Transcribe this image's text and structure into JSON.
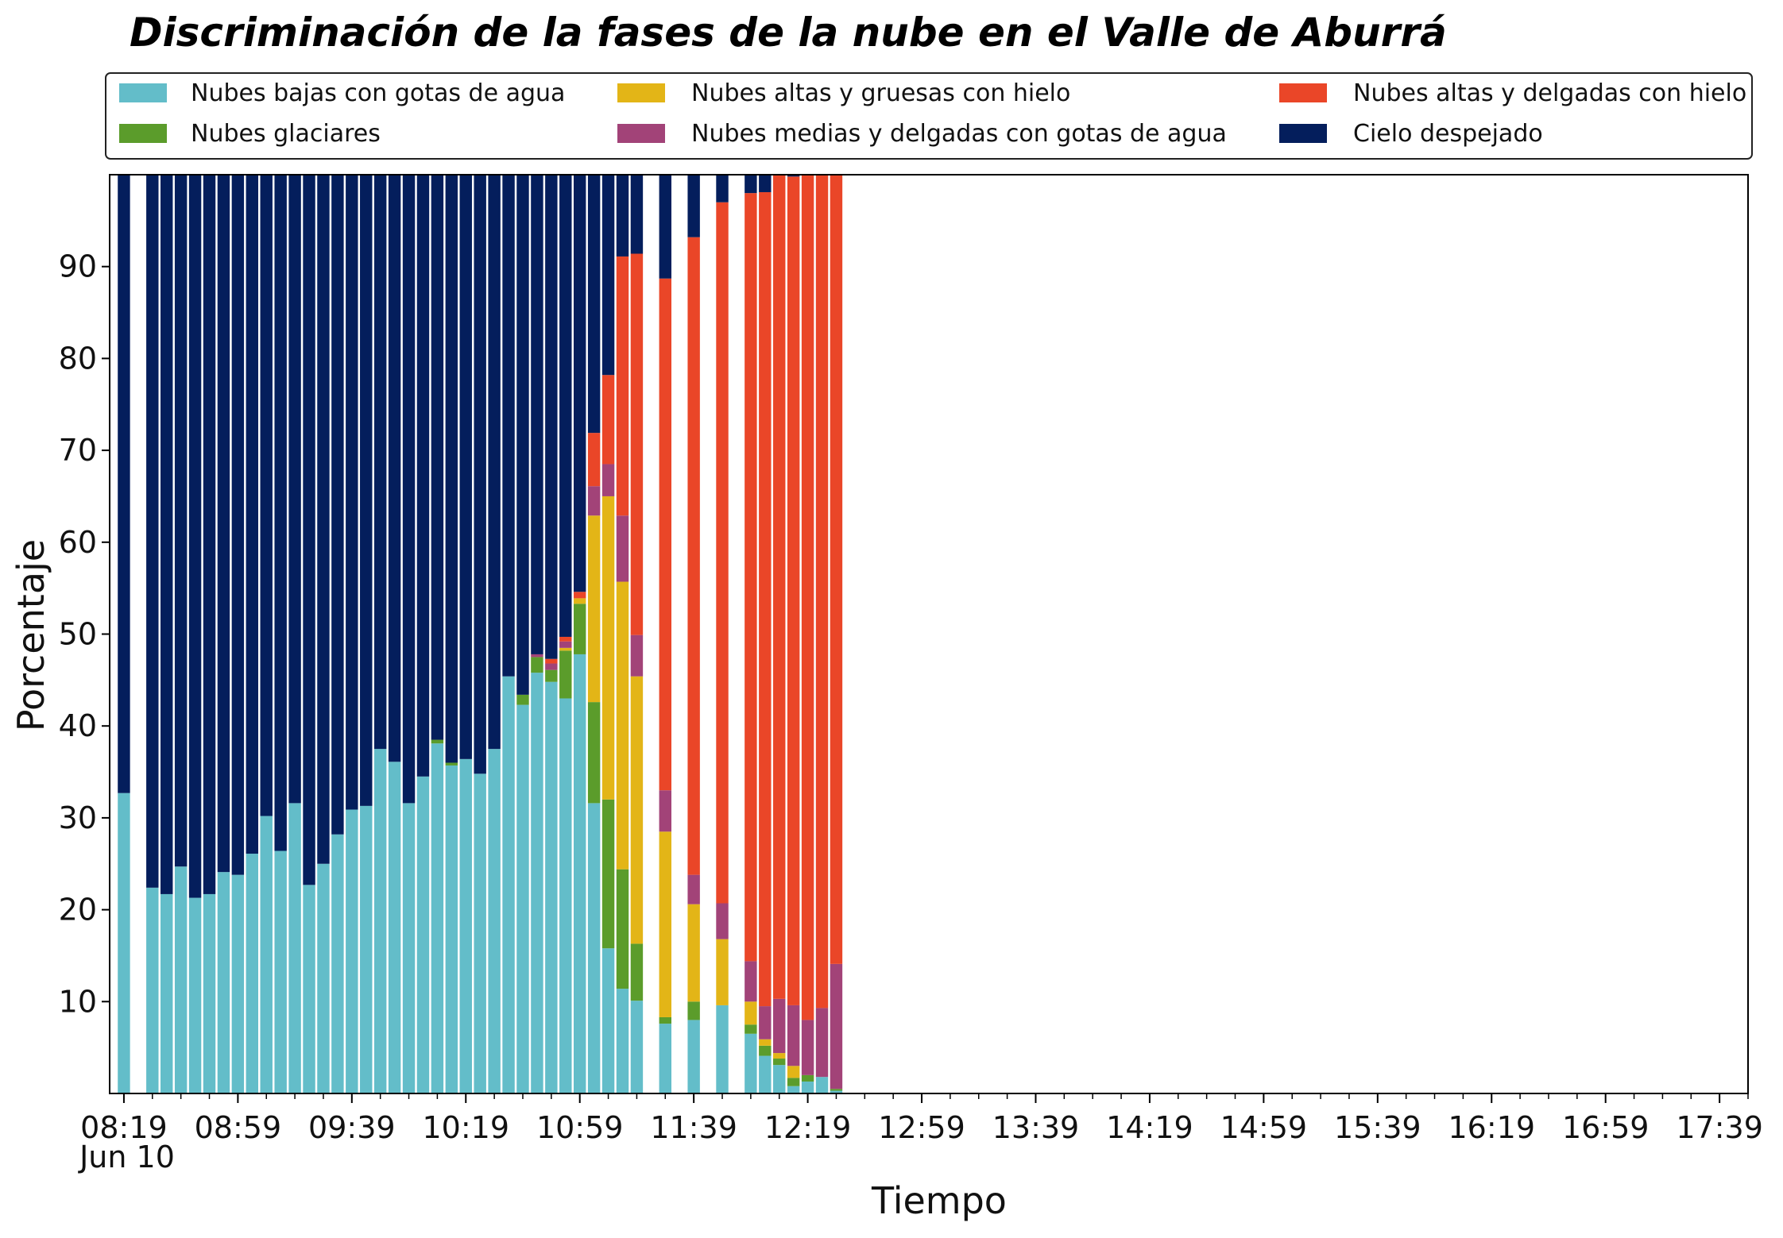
{
  "chart_data": {
    "type": "bar",
    "stacked": true,
    "title": "Discriminación de la fases de la nube en el Valle de Aburrá",
    "xlabel": "Tiempo",
    "ylabel": "Porcentaje",
    "ylim": [
      0,
      100
    ],
    "yticks": [
      10,
      20,
      30,
      40,
      50,
      60,
      70,
      80,
      90
    ],
    "x_major_ticks": [
      "08:19",
      "08:59",
      "09:39",
      "10:19",
      "10:59",
      "11:39",
      "12:19",
      "12:59",
      "13:39",
      "14:19",
      "14:59",
      "15:39",
      "16:19",
      "16:59",
      "17:39"
    ],
    "x_date_label": "Jun 10",
    "legend_position": "top",
    "grid": false,
    "categories": [
      "08:19",
      "08:29",
      "08:34",
      "08:39",
      "08:44",
      "08:49",
      "08:54",
      "08:59",
      "09:04",
      "09:09",
      "09:14",
      "09:19",
      "09:24",
      "09:29",
      "09:34",
      "09:39",
      "09:44",
      "09:49",
      "09:54",
      "09:59",
      "10:04",
      "10:09",
      "10:14",
      "10:19",
      "10:24",
      "10:29",
      "10:34",
      "10:39",
      "10:44",
      "10:49",
      "10:54",
      "10:59",
      "11:04",
      "11:09",
      "11:14",
      "11:19",
      "11:29",
      "11:39",
      "11:49",
      "11:59",
      "12:04",
      "12:09",
      "12:14",
      "12:19",
      "12:24",
      "12:29",
      "12:39",
      "12:49",
      "12:59",
      "13:09",
      "13:19"
    ],
    "series": [
      {
        "name": "Nubes bajas con gotas de agua",
        "color": "#63bdc9",
        "values": [
          32.7,
          22.4,
          21.7,
          24.7,
          21.3,
          21.7,
          24.1,
          23.8,
          26.1,
          30.2,
          26.4,
          31.6,
          22.7,
          25.0,
          28.2,
          30.9,
          31.3,
          37.5,
          36.1,
          31.6,
          34.5,
          38.1,
          35.7,
          36.4,
          34.8,
          37.5,
          45.4,
          42.3,
          45.8,
          44.8,
          43.0,
          47.8,
          31.6,
          15.8,
          11.4,
          10.1,
          7.6,
          8.0,
          9.6,
          6.5,
          4.1,
          3.1,
          0.8,
          1.3,
          1.8,
          0.3,
          0.0,
          0.0,
          0.0,
          0.0,
          0.0
        ]
      },
      {
        "name": "Nubes glaciares",
        "color": "#5b9c2b",
        "values": [
          0,
          0,
          0,
          0,
          0,
          0,
          0,
          0,
          0,
          0,
          0,
          0,
          0,
          0,
          0,
          0,
          0,
          0,
          0,
          0,
          0,
          0.4,
          0.3,
          0,
          0,
          0,
          0,
          1.1,
          1.7,
          1.3,
          5.2,
          5.5,
          11.0,
          16.2,
          13.0,
          6.2,
          0.7,
          2.0,
          0,
          1.0,
          1.1,
          0.7,
          0.9,
          0.7,
          0,
          0.2,
          0,
          0,
          0,
          0,
          0
        ]
      },
      {
        "name": "Nubes altas y gruesas con hielo",
        "color": "#e3b517",
        "values": [
          0,
          0,
          0,
          0,
          0,
          0,
          0,
          0,
          0,
          0,
          0,
          0,
          0,
          0,
          0,
          0,
          0,
          0,
          0,
          0,
          0,
          0,
          0,
          0,
          0,
          0,
          0,
          0,
          0,
          0,
          0.3,
          0.6,
          20.3,
          33.0,
          31.3,
          29.1,
          20.2,
          10.6,
          7.2,
          2.5,
          0.7,
          0.6,
          1.3,
          0,
          0,
          0,
          0,
          0,
          0,
          0,
          0
        ]
      },
      {
        "name": "Nubes medias y delgadas con gotas de agua",
        "color": "#a24378",
        "values": [
          0,
          0,
          0,
          0,
          0,
          0,
          0,
          0,
          0,
          0,
          0,
          0,
          0,
          0,
          0,
          0,
          0,
          0,
          0,
          0,
          0,
          0,
          0,
          0,
          0,
          0,
          0,
          0,
          0.3,
          0.7,
          0.7,
          0,
          3.2,
          3.5,
          7.2,
          4.5,
          4.5,
          3.2,
          3.9,
          4.4,
          3.6,
          5.9,
          6.6,
          6.0,
          7.5,
          13.6,
          0,
          0,
          0,
          0,
          0
        ]
      },
      {
        "name": "Nubes altas y delgadas con hielo",
        "color": "#ea4628",
        "values": [
          0,
          0,
          0,
          0,
          0,
          0,
          0,
          0,
          0,
          0,
          0,
          0,
          0,
          0,
          0,
          0,
          0,
          0,
          0,
          0,
          0,
          0,
          0,
          0,
          0,
          0,
          0,
          0,
          0,
          0.5,
          0.5,
          0.7,
          5.8,
          9.7,
          28.2,
          41.5,
          55.7,
          69.4,
          76.3,
          83.6,
          88.6,
          89.8,
          90.2,
          92.0,
          90.7,
          86.0,
          0,
          0,
          0,
          0,
          0
        ]
      },
      {
        "name": "Cielo despejado",
        "color": "#041e5c",
        "values": [
          67.3,
          77.6,
          78.3,
          75.3,
          78.7,
          78.3,
          75.9,
          76.2,
          73.9,
          69.8,
          73.6,
          68.4,
          77.3,
          75.0,
          71.8,
          69.1,
          68.7,
          62.5,
          63.9,
          68.4,
          65.5,
          61.5,
          64.0,
          63.6,
          65.2,
          62.5,
          54.6,
          56.6,
          52.2,
          52.7,
          50.3,
          45.4,
          28.1,
          21.8,
          8.9,
          8.6,
          11.3,
          6.8,
          3.0,
          2.0,
          1.9,
          0,
          0.6,
          0,
          0,
          0,
          0,
          0,
          0,
          0,
          0
        ]
      }
    ]
  },
  "legend": {
    "items": [
      {
        "label": "Nubes bajas con gotas de agua",
        "color": "#63bdc9"
      },
      {
        "label": "Nubes glaciares",
        "color": "#5b9c2b"
      },
      {
        "label": "Nubes altas y gruesas con hielo",
        "color": "#e3b517"
      },
      {
        "label": "Nubes medias y delgadas con gotas de agua",
        "color": "#a24378"
      },
      {
        "label": "Nubes altas y delgadas con hielo",
        "color": "#ea4628"
      },
      {
        "label": "Cielo despejado",
        "color": "#041e5c"
      }
    ]
  }
}
